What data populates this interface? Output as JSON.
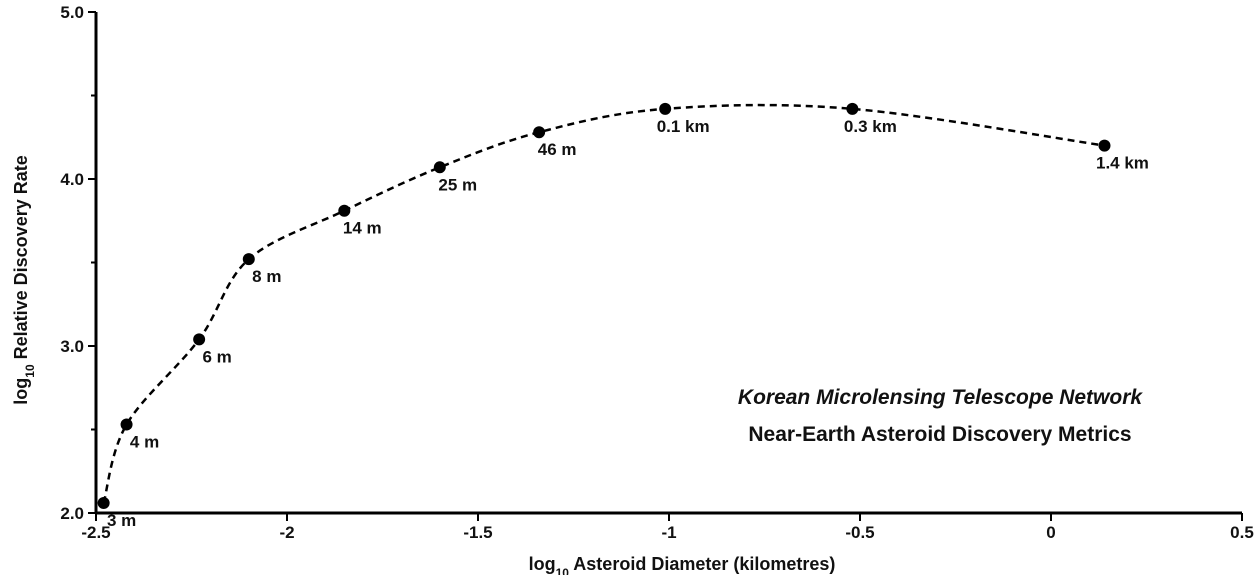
{
  "chart_data": {
    "type": "scatter",
    "xlabel": "log10 Asteroid Diameter (kilometres)",
    "xlabel_parts": {
      "prefix": "log",
      "sub": "10",
      "rest": " Asteroid Diameter (kilometres)"
    },
    "ylabel": "log10 Relative Discovery Rate",
    "ylabel_parts": {
      "prefix": "log",
      "sub": "10",
      "rest": " Relative Discovery Rate"
    },
    "xlim": [
      -2.5,
      0.5
    ],
    "ylim": [
      2.0,
      5.0
    ],
    "x_ticks": [
      -2.5,
      -2,
      -1.5,
      -1,
      -0.5,
      0,
      0.5
    ],
    "x_tick_labels": [
      "-2.5",
      "-2",
      "-1.5",
      "-1",
      "-0.5",
      "0",
      "0.5"
    ],
    "y_ticks": [
      2.0,
      3.0,
      4.0,
      5.0
    ],
    "y_tick_labels": [
      "2.0",
      "3.0",
      "4.0",
      "5.0"
    ],
    "grid": false,
    "line_style": "dashed smooth curve through points",
    "series": [
      {
        "points": [
          {
            "x": -2.48,
            "y": 2.06,
            "label": "3 m"
          },
          {
            "x": -2.42,
            "y": 2.53,
            "label": "4 m"
          },
          {
            "x": -2.23,
            "y": 3.04,
            "label": "6 m"
          },
          {
            "x": -2.1,
            "y": 3.52,
            "label": "8 m"
          },
          {
            "x": -1.85,
            "y": 3.81,
            "label": "14 m"
          },
          {
            "x": -1.6,
            "y": 4.07,
            "label": "25 m"
          },
          {
            "x": -1.34,
            "y": 4.28,
            "label": "46 m"
          },
          {
            "x": -1.01,
            "y": 4.42,
            "label": "0.1 km"
          },
          {
            "x": -0.52,
            "y": 4.42,
            "label": "0.3 km"
          },
          {
            "x": 0.14,
            "y": 4.2,
            "label": "1.4 km"
          }
        ]
      }
    ],
    "annotations": {
      "line1": "Korean Microlensing Telescope Network",
      "line2": "Near-Earth Asteroid Discovery Metrics"
    },
    "colors": {
      "marker": "#000000",
      "line": "#000000",
      "axis": "#000000"
    }
  }
}
